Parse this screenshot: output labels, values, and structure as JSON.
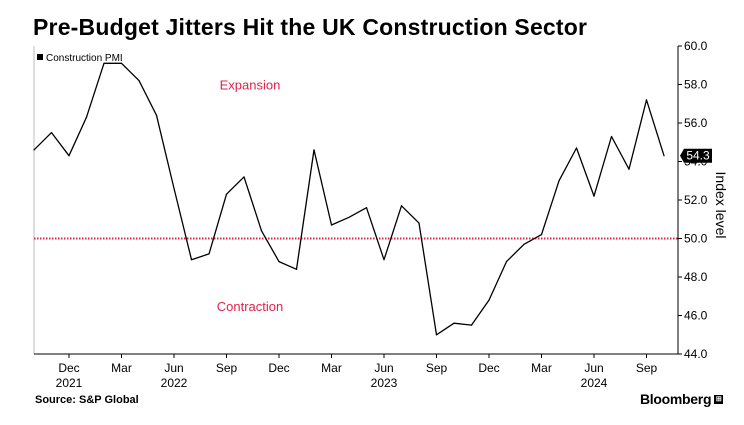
{
  "title": "Pre-Budget Jitters Hit the UK Construction Sector",
  "footer": {
    "source": "Source: S&P Global",
    "brand": "Bloomberg",
    "brand_icon": "bloomberg-terminal-icon"
  },
  "colors": {
    "line": "#000000",
    "reference": "#e2234c",
    "annotation": "#e2234c",
    "last_value_badge": "#000000"
  },
  "chart_data": {
    "type": "line",
    "title": "Pre-Budget Jitters Hit the UK Construction Sector",
    "ylabel": "Index level",
    "xlabel": "",
    "ylim": [
      44,
      60
    ],
    "grid": false,
    "legend": {
      "position": "top-left",
      "entries": [
        "Construction PMI"
      ]
    },
    "y_ticks": [
      "44.0",
      "46.0",
      "48.0",
      "50.0",
      "52.0",
      "54.0",
      "56.0",
      "58.0",
      "60.0"
    ],
    "y_tick_values": [
      44,
      46,
      48,
      50,
      52,
      54,
      56,
      58,
      60
    ],
    "x_ticks": [
      {
        "index": 2,
        "label": "Dec",
        "year": "2021"
      },
      {
        "index": 5,
        "label": "Mar",
        "year": ""
      },
      {
        "index": 8,
        "label": "Jun",
        "year": "2022"
      },
      {
        "index": 11,
        "label": "Sep",
        "year": ""
      },
      {
        "index": 14,
        "label": "Dec",
        "year": ""
      },
      {
        "index": 17,
        "label": "Mar",
        "year": ""
      },
      {
        "index": 20,
        "label": "Jun",
        "year": "2023"
      },
      {
        "index": 23,
        "label": "Sep",
        "year": ""
      },
      {
        "index": 26,
        "label": "Dec",
        "year": ""
      },
      {
        "index": 29,
        "label": "Mar",
        "year": ""
      },
      {
        "index": 32,
        "label": "Jun",
        "year": "2024"
      },
      {
        "index": 35,
        "label": "Sep",
        "year": ""
      }
    ],
    "x": [
      "2021-10",
      "2021-11",
      "2021-12",
      "2022-01",
      "2022-02",
      "2022-03",
      "2022-04",
      "2022-05",
      "2022-06",
      "2022-07",
      "2022-08",
      "2022-09",
      "2022-10",
      "2022-11",
      "2022-12",
      "2023-01",
      "2023-02",
      "2023-03",
      "2023-04",
      "2023-05",
      "2023-06",
      "2023-07",
      "2023-08",
      "2023-09",
      "2023-10",
      "2023-11",
      "2023-12",
      "2024-01",
      "2024-02",
      "2024-03",
      "2024-04",
      "2024-05",
      "2024-06",
      "2024-07",
      "2024-08",
      "2024-09",
      "2024-10"
    ],
    "series": [
      {
        "name": "Construction PMI",
        "values": [
          54.6,
          55.5,
          54.3,
          56.3,
          59.1,
          59.1,
          58.2,
          56.4,
          52.6,
          48.9,
          49.2,
          52.3,
          53.2,
          50.4,
          48.8,
          48.4,
          54.6,
          50.7,
          51.1,
          51.6,
          48.9,
          51.7,
          50.8,
          45.0,
          45.6,
          45.5,
          46.8,
          48.8,
          49.7,
          50.2,
          53.0,
          54.7,
          52.2,
          55.3,
          53.6,
          57.2,
          54.3
        ]
      }
    ],
    "reference_line": {
      "value": 50.0
    },
    "annotations": [
      {
        "text": "Expansion",
        "y": 58.0,
        "x_index": 12
      },
      {
        "text": "Contraction",
        "y": 46.5,
        "x_index": 12
      }
    ],
    "last_value_label": "54.3"
  }
}
